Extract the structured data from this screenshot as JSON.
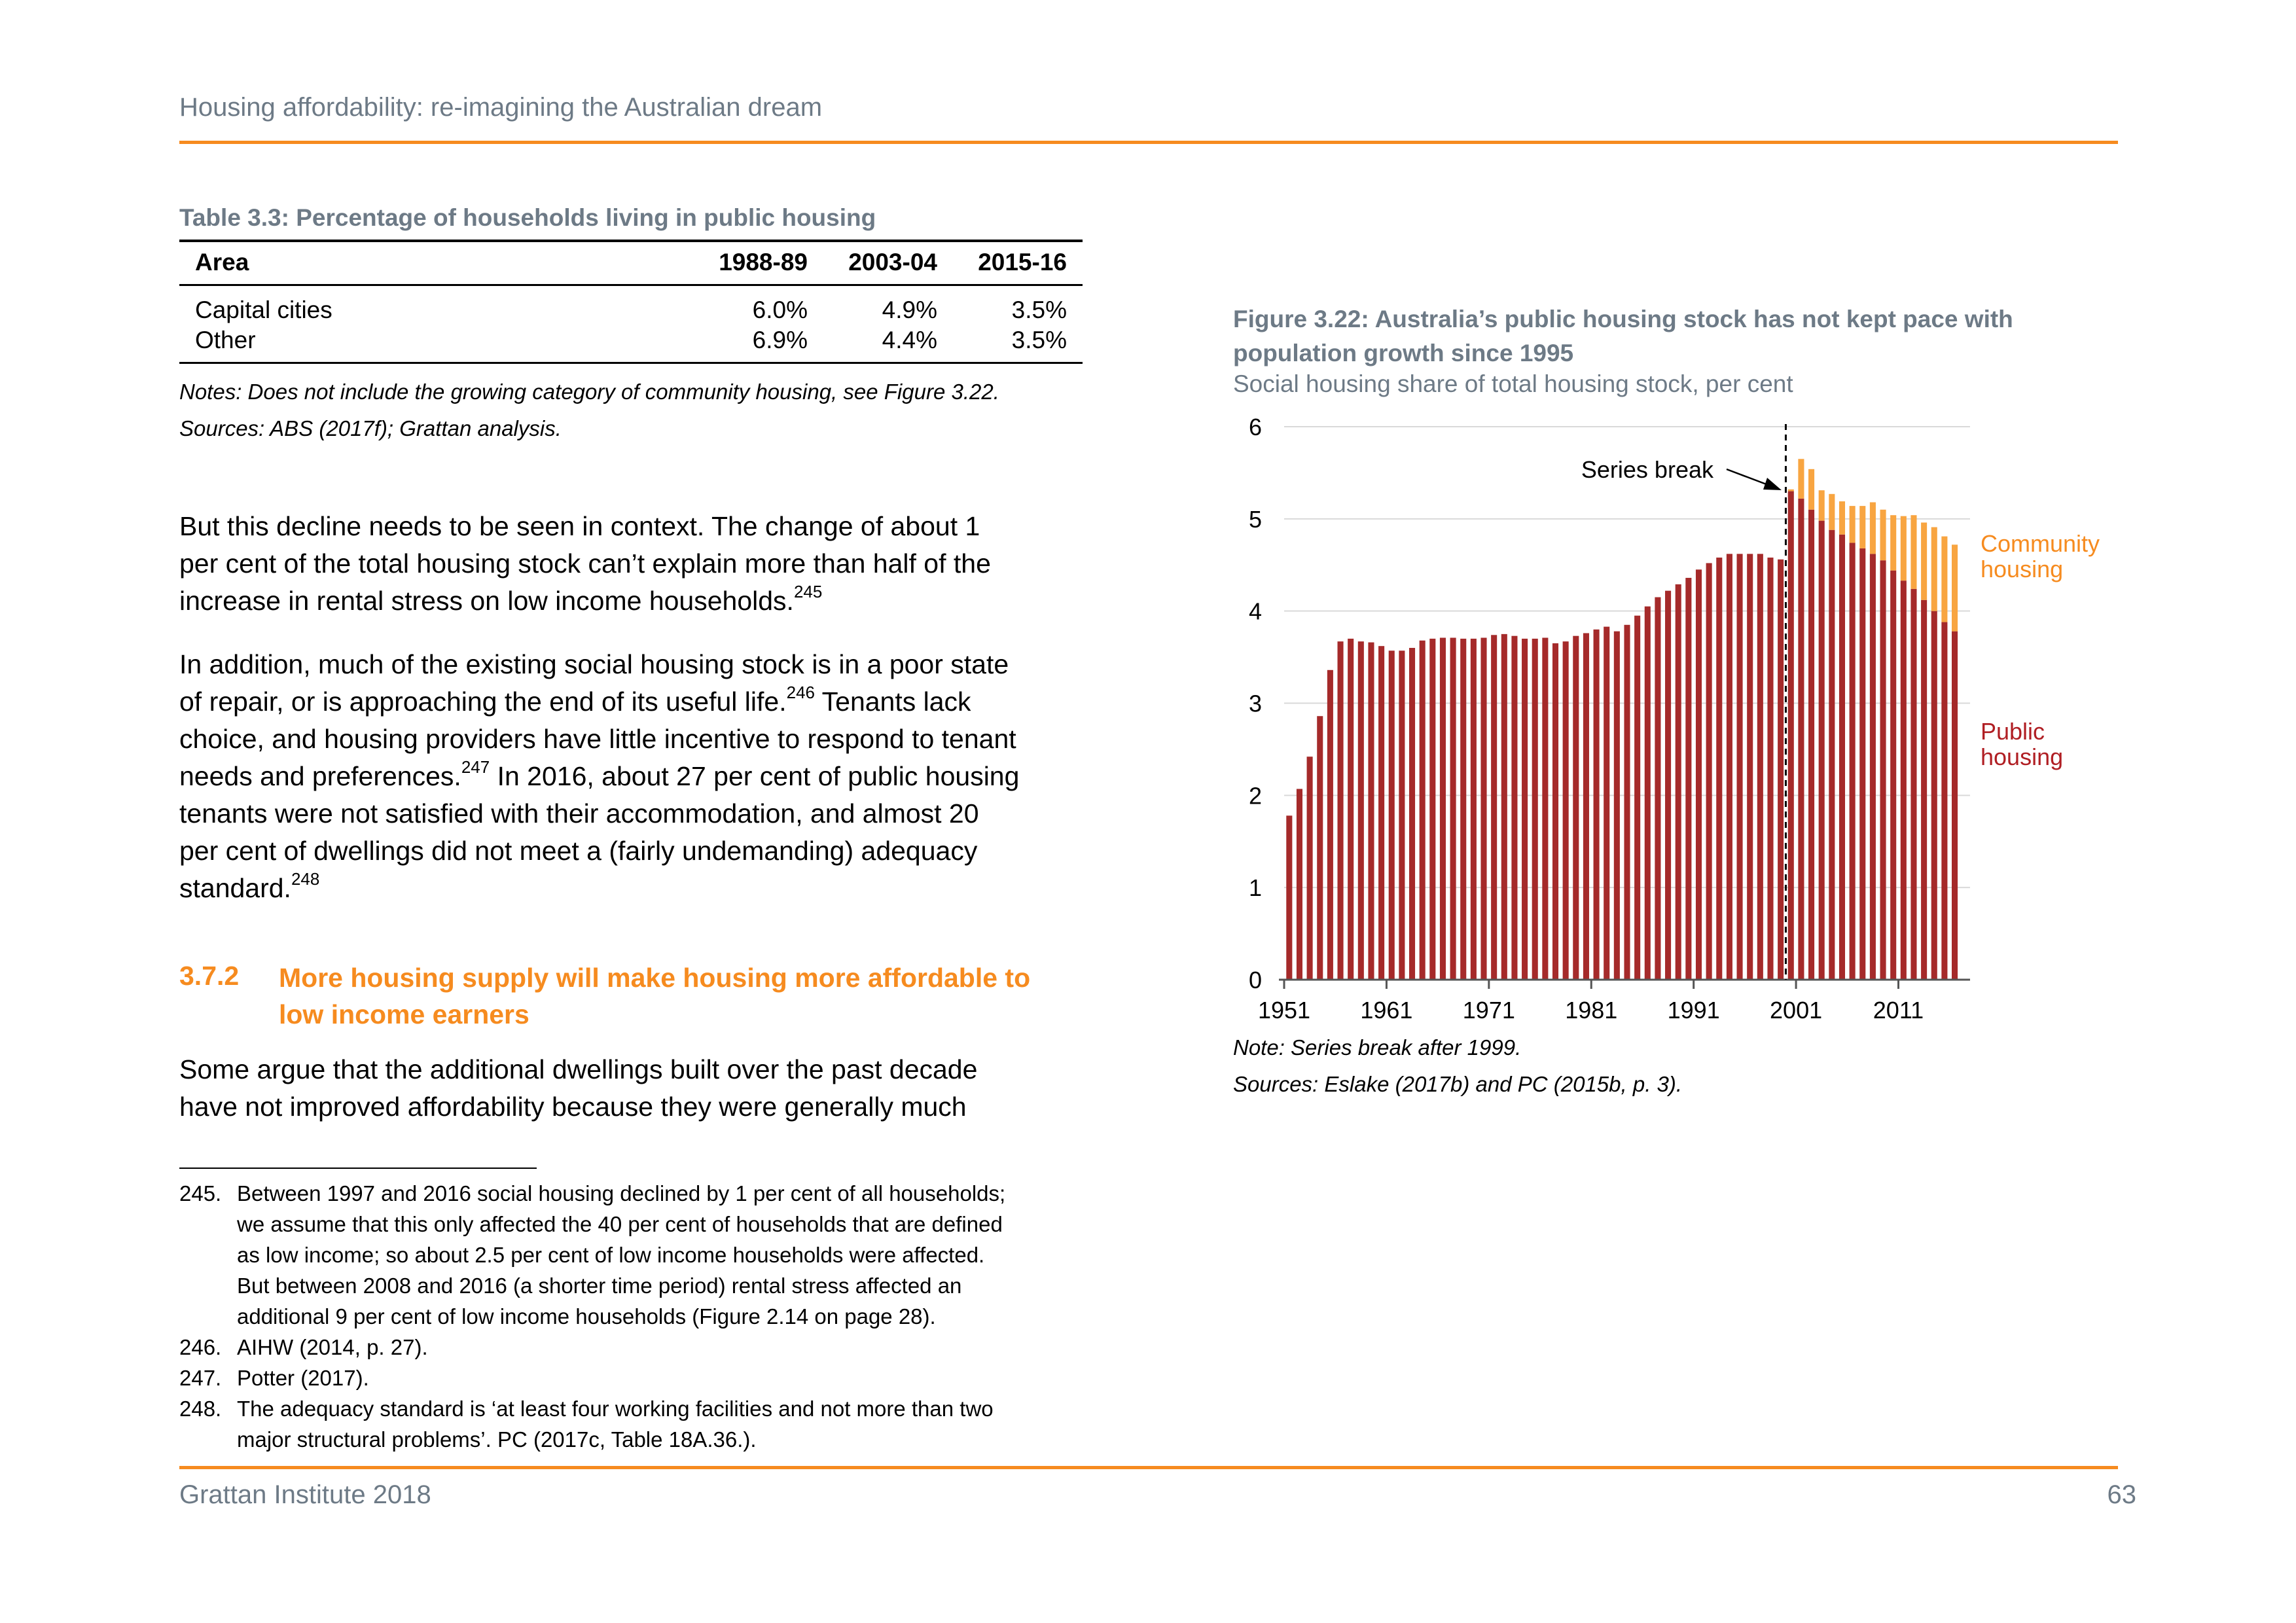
{
  "header": {
    "title": "Housing affordability: re-imagining the Australian dream"
  },
  "table": {
    "caption": "Table 3.3: Percentage of households living in public housing",
    "columns": [
      "Area",
      "1988-89",
      "2003-04",
      "2015-16"
    ],
    "rows": [
      [
        "Capital cities",
        "6.0%",
        "4.9%",
        "3.5%"
      ],
      [
        "Other",
        "6.9%",
        "4.4%",
        "3.5%"
      ]
    ],
    "notes": "Notes: Does not include the growing category of community housing, see Figure 3.22.",
    "sources": "Sources: ABS (2017f); Grattan analysis."
  },
  "body": {
    "p1_lines": [
      "But this decline needs to be seen in context. The change of about 1",
      "per cent of the total housing stock can’t explain more than half of the",
      "increase in rental stress on low income households."
    ],
    "p1_ref": "245",
    "p2_lines": [
      "In addition, much of the existing social housing stock is in a poor state",
      "of repair, or is approaching the end of its useful life.",
      " Tenants lack",
      "choice, and housing providers have little incentive to respond to tenant",
      "needs and preferences.",
      " In 2016, about 27 per cent of public housing",
      "tenants were not satisfied with their accommodation, and almost 20",
      "per cent of dwellings did not meet a (fairly undemanding) adequacy",
      "standard."
    ],
    "p2_refs": [
      "246",
      "247",
      "248"
    ],
    "section_number": "3.7.2",
    "section_title_lines": [
      "More housing supply will make housing more affordable to",
      "low income earners"
    ],
    "p3_lines": [
      "Some argue that the additional dwellings built over the past decade",
      "have not improved affordability because they were generally much"
    ]
  },
  "footnotes": [
    {
      "num": "245.",
      "lines": [
        "Between 1997 and 2016 social housing declined by 1 per cent of all households;",
        "we assume that this only affected the 40 per cent of households that are defined",
        "as low income; so about 2.5 per cent of low income households were affected.",
        "But between 2008 and 2016 (a shorter time period) rental stress affected an",
        "additional 9 per cent of low income households (Figure 2.14 on page 28)."
      ]
    },
    {
      "num": "246.",
      "lines": [
        "AIHW (2014, p. 27)."
      ]
    },
    {
      "num": "247.",
      "lines": [
        "Potter (2017)."
      ]
    },
    {
      "num": "248.",
      "lines": [
        "The adequacy standard is ‘at least four working facilities and not more than two",
        "major structural problems’. PC (2017c, Table 18A.36.)."
      ]
    }
  ],
  "figure": {
    "title_lines": [
      "Figure 3.22: Australia’s public housing stock has not kept pace with",
      "population growth since 1995"
    ],
    "subtitle": "Social housing share of total housing stock, per cent",
    "note": "Note: Series break after 1999.",
    "sources": "Sources: Eslake (2017b) and PC (2015b, p. 3)."
  },
  "chart_data": {
    "type": "bar",
    "stacked": true,
    "ylim": [
      0,
      6
    ],
    "yticks": [
      "0",
      "1",
      "2",
      "3",
      "4",
      "5",
      "6"
    ],
    "xticks": [
      "1951",
      "1961",
      "1971",
      "1981",
      "1991",
      "2001",
      "2011"
    ],
    "years": [
      1951,
      1952,
      1953,
      1954,
      1955,
      1956,
      1957,
      1958,
      1959,
      1960,
      1961,
      1962,
      1963,
      1964,
      1965,
      1966,
      1967,
      1968,
      1969,
      1970,
      1971,
      1972,
      1973,
      1974,
      1975,
      1976,
      1977,
      1978,
      1979,
      1980,
      1981,
      1982,
      1983,
      1984,
      1985,
      1986,
      1987,
      1988,
      1989,
      1990,
      1991,
      1992,
      1993,
      1994,
      1995,
      1996,
      1997,
      1998,
      1999,
      2000,
      2001,
      2002,
      2003,
      2004,
      2005,
      2006,
      2007,
      2008,
      2009,
      2010,
      2011,
      2012,
      2013,
      2014,
      2015,
      2016
    ],
    "series": [
      {
        "name": "Public housing",
        "color": "#a52a2a",
        "values": [
          1.78,
          2.07,
          2.42,
          2.86,
          3.36,
          3.67,
          3.7,
          3.67,
          3.66,
          3.62,
          3.57,
          3.57,
          3.6,
          3.68,
          3.7,
          3.71,
          3.71,
          3.7,
          3.7,
          3.71,
          3.74,
          3.75,
          3.73,
          3.7,
          3.7,
          3.71,
          3.65,
          3.67,
          3.73,
          3.76,
          3.8,
          3.83,
          3.78,
          3.85,
          3.95,
          4.05,
          4.15,
          4.22,
          4.29,
          4.36,
          4.45,
          4.52,
          4.58,
          4.62,
          4.62,
          4.62,
          4.62,
          4.58,
          4.56,
          5.3,
          5.22,
          5.1,
          4.98,
          4.88,
          4.83,
          4.74,
          4.68,
          4.62,
          4.55,
          4.44,
          4.33,
          4.24,
          4.12,
          4.0,
          3.88,
          3.78
        ]
      },
      {
        "name": "Community housing",
        "color": "#f8a541",
        "values": [
          0,
          0,
          0,
          0,
          0,
          0,
          0,
          0,
          0,
          0,
          0,
          0,
          0,
          0,
          0,
          0,
          0,
          0,
          0,
          0,
          0,
          0,
          0,
          0,
          0,
          0,
          0,
          0,
          0,
          0,
          0,
          0,
          0,
          0,
          0,
          0,
          0,
          0,
          0,
          0,
          0,
          0,
          0,
          0,
          0,
          0,
          0,
          0,
          0,
          0.02,
          0.43,
          0.44,
          0.33,
          0.39,
          0.36,
          0.4,
          0.46,
          0.56,
          0.55,
          0.6,
          0.7,
          0.8,
          0.84,
          0.91,
          0.93,
          0.94
        ]
      }
    ],
    "annotation": "Series break",
    "legend_labels": [
      {
        "lines": [
          "Community",
          "housing"
        ],
        "color": "#f68b1f"
      },
      {
        "lines": [
          "Public",
          "housing"
        ],
        "color": "#b01e23"
      }
    ]
  },
  "footer": {
    "left": "Grattan Institute 2018",
    "page": "63"
  }
}
